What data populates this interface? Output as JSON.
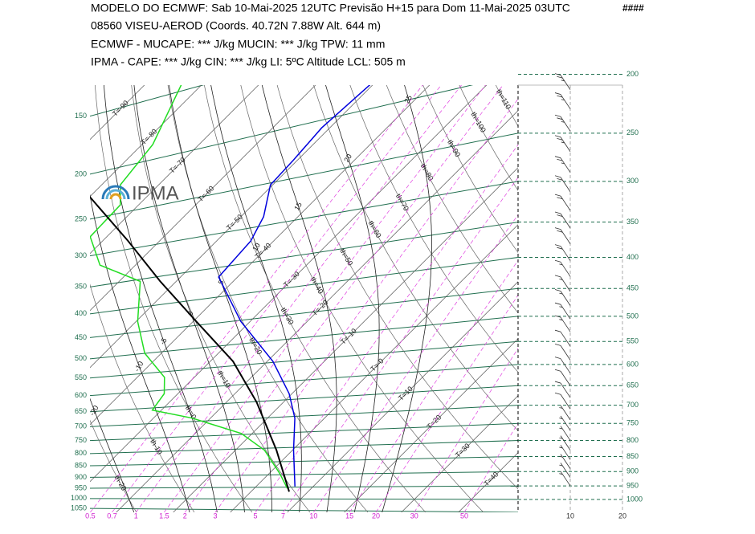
{
  "chart_data": {
    "type": "skewt",
    "title_lines": [
      "MODELO DO ECMWF:  Sab  10-Mai-2025 12UTC  Previsão H+15  para  Dom 11-Mai-2025 03UTC",
      "08560   VISEU-AEROD  (Coords.  40.72N 7.88W   Alt. 644 m)",
      "ECMWF - MUCAPE: *** J/kg   MUCIN: *** J/kg   TPW: 11 mm",
      "IPMA - CAPE: *** J/kg   CIN: *** J/kg   LI: 5ºC   Altitude LCL: 505 m"
    ],
    "code": "####",
    "logo": "IPMA",
    "ylim": [
      1050,
      208
    ],
    "yticks": [
      150,
      200,
      250,
      300,
      350,
      400,
      450,
      500,
      550,
      600,
      650,
      700,
      750,
      800,
      850,
      900,
      950,
      1000,
      1050
    ],
    "y2ticks": [
      200,
      250,
      300,
      350,
      400,
      450,
      500,
      550,
      600,
      650,
      700,
      750,
      800,
      850,
      900,
      950,
      1000
    ],
    "mixing_ratio_ticks": [
      0.5,
      0.7,
      1,
      1.5,
      2,
      3,
      5,
      7,
      10,
      15,
      20,
      30,
      50
    ],
    "wind_xlim": [
      0,
      20
    ],
    "wind_xticks": [
      10,
      20
    ],
    "isotherms": [
      {
        "value": -90,
        "label": "T=-90"
      },
      {
        "value": -80,
        "label": "T=-80"
      },
      {
        "value": -70,
        "label": "T=-70"
      },
      {
        "value": -60,
        "label": "T=-60"
      },
      {
        "value": -50,
        "label": "T=-50"
      },
      {
        "value": -40,
        "label": "T=-40"
      },
      {
        "value": -30,
        "label": "T=-30"
      },
      {
        "value": -20,
        "label": "T=-20"
      },
      {
        "value": -10,
        "label": "T=-10"
      },
      {
        "value": 0,
        "label": "T=-0"
      },
      {
        "value": 10,
        "label": "T=10"
      },
      {
        "value": 20,
        "label": "T=20"
      },
      {
        "value": 30,
        "label": "T=30"
      },
      {
        "value": 40,
        "label": "T=40"
      }
    ],
    "dry_adiabats": [
      {
        "value": -20,
        "label": "th-20"
      },
      {
        "value": -10,
        "label": "th-10"
      },
      {
        "value": 0,
        "label": "th=0"
      },
      {
        "value": 10,
        "label": "th=10"
      },
      {
        "value": 20,
        "label": "th=20"
      },
      {
        "value": 30,
        "label": "th=30"
      },
      {
        "value": 40,
        "label": "th=40"
      },
      {
        "value": 50,
        "label": "th=50"
      },
      {
        "value": 60,
        "label": "th=60"
      },
      {
        "value": 70,
        "label": "th=70"
      },
      {
        "value": 80,
        "label": "th=80"
      },
      {
        "value": 90,
        "label": "th=90"
      },
      {
        "value": 100,
        "label": "th=100"
      },
      {
        "value": 110,
        "label": "th=110"
      }
    ],
    "moist_adiabats": [
      -20,
      -10,
      -5,
      0,
      5,
      10,
      15,
      20,
      25
    ],
    "series": [
      {
        "color": "#0000dd",
        "pressure": [
          952,
          830,
          735,
          670,
          593,
          510,
          431,
          376,
          343,
          304,
          277,
          245,
          208
        ],
        "values": [
          6.8,
          0.2,
          -5.2,
          -10.5,
          -19,
          -31.6,
          -43.3,
          -44,
          -46,
          -50.4,
          -50.7,
          -51.4,
          -50.5
        ]
      },
      {
        "color": "#22dd22",
        "pressure": [
          959,
          907,
          830,
          779,
          735,
          713,
          670,
          630,
          575,
          510,
          438,
          412,
          370,
          328,
          304,
          261,
          208
        ],
        "values": [
          5.8,
          1.9,
          -4.9,
          -11.9,
          -23.2,
          -31.6,
          -32.4,
          -35.2,
          -42.9,
          -49.7,
          -56.3,
          -66.2,
          -72.9,
          -73.2,
          -76.7,
          -78.1,
          -83.6
        ]
      },
      {
        "color": "#000000",
        "pressure": [
          971,
          830,
          692,
          593,
          510,
          438,
          376,
          318
        ],
        "values": [
          6.7,
          -2.8,
          -14.7,
          -26,
          -39.4,
          -52.8,
          -65.5,
          -80
        ]
      }
    ],
    "wind": {
      "pressure": [
        212,
        228,
        248,
        268,
        290,
        312,
        335,
        358,
        380,
        405,
        430,
        455,
        480,
        505,
        530,
        560,
        590,
        620,
        650,
        680,
        710,
        740,
        770,
        800,
        830,
        860,
        890,
        920,
        950
      ],
      "speed": [
        25,
        25,
        25,
        25,
        25,
        20,
        20,
        20,
        20,
        20,
        15,
        15,
        15,
        15,
        15,
        10,
        10,
        10,
        10,
        10,
        10,
        5,
        5,
        5,
        5,
        5,
        5,
        5,
        5
      ]
    }
  }
}
